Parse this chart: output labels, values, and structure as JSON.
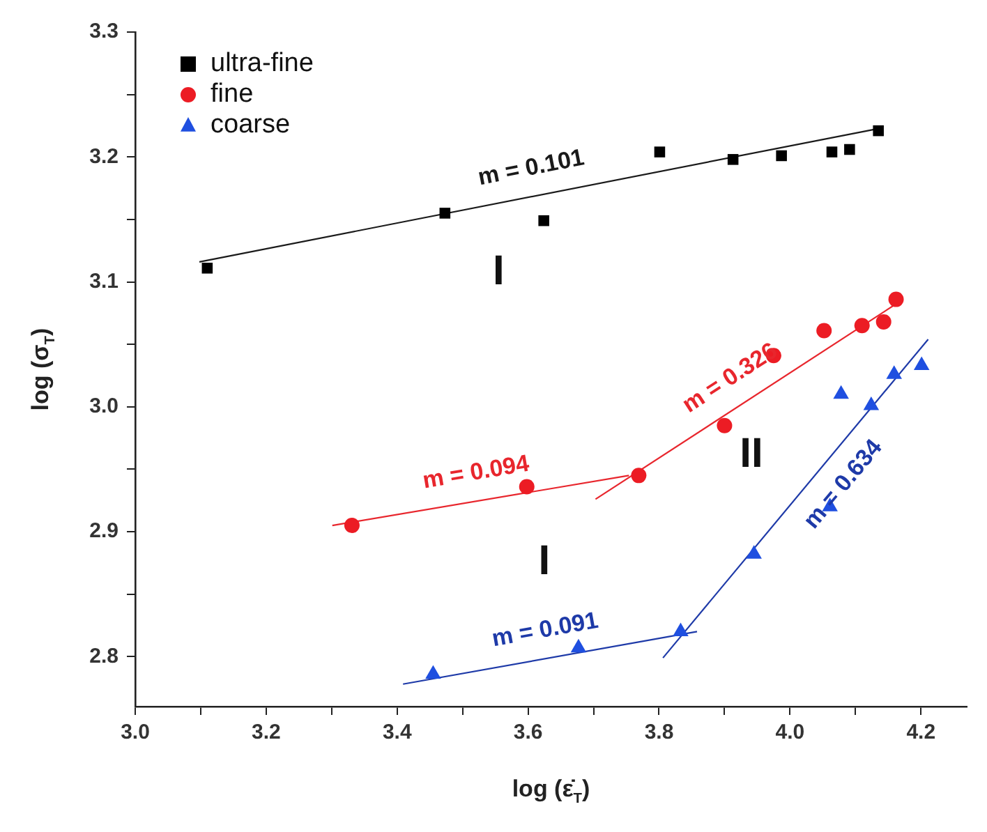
{
  "chart_data": {
    "type": "scatter",
    "xlabel": "log (ε̇$_{T}$)",
    "ylabel": "log (σ$_{T}$)",
    "legend": "top left",
    "xlim": [
      3.0,
      4.27
    ],
    "ylim": [
      2.76,
      3.3
    ],
    "xticks": [
      {
        "value": 3.0,
        "label": "3.0"
      },
      {
        "value": 3.1,
        "label": null
      },
      {
        "value": 3.2,
        "label": "3.2"
      },
      {
        "value": 3.3,
        "label": null
      },
      {
        "value": 3.4,
        "label": "3.4"
      },
      {
        "value": 3.5,
        "label": null
      },
      {
        "value": 3.6,
        "label": "3.6"
      },
      {
        "value": 3.7,
        "label": null
      },
      {
        "value": 3.8,
        "label": "3.8"
      },
      {
        "value": 3.9,
        "label": null
      },
      {
        "value": 4.0,
        "label": "4.0"
      },
      {
        "value": 4.1,
        "label": null
      },
      {
        "value": 4.2,
        "label": "4.2"
      }
    ],
    "yticks": [
      {
        "value": 2.8,
        "label": "2.8"
      },
      {
        "value": 2.85,
        "label": null
      },
      {
        "value": 2.9,
        "label": "2.9"
      },
      {
        "value": 2.95,
        "label": null
      },
      {
        "value": 3.0,
        "label": "3.0"
      },
      {
        "value": 3.05,
        "label": null
      },
      {
        "value": 3.1,
        "label": "3.1"
      },
      {
        "value": 3.15,
        "label": null
      },
      {
        "value": 3.2,
        "label": "3.2"
      },
      {
        "value": 3.25,
        "label": null
      },
      {
        "value": 3.3,
        "label": "3.3"
      }
    ],
    "series": [
      {
        "name": "ultra-fine",
        "type": "scatter",
        "marker": "square",
        "color": "#000000",
        "x": [
          3.11,
          3.473,
          3.624,
          3.801,
          3.913,
          3.987,
          4.064,
          4.091,
          4.135
        ],
        "values": [
          3.111,
          3.155,
          3.149,
          3.204,
          3.198,
          3.201,
          3.204,
          3.206,
          3.221
        ]
      },
      {
        "name": "fine",
        "type": "scatter",
        "marker": "circle",
        "color": "#ec1c24",
        "x": [
          3.331,
          3.598,
          3.769,
          3.9,
          3.975,
          4.052,
          4.11,
          4.143,
          4.162
        ],
        "values": [
          2.905,
          2.936,
          2.945,
          2.985,
          3.041,
          3.061,
          3.065,
          3.068,
          3.086
        ]
      },
      {
        "name": "coarse",
        "type": "scatter",
        "marker": "triangle",
        "color": "#1f4fe0",
        "x": [
          3.455,
          3.677,
          3.833,
          3.945,
          4.061,
          4.078,
          4.124,
          4.159,
          4.201
        ],
        "values": [
          2.786,
          2.807,
          2.82,
          2.882,
          2.92,
          3.01,
          3.001,
          3.026,
          3.033
        ]
      },
      {
        "name": "m = 0.101",
        "type": "line",
        "marker": "none",
        "color": "#1a1a1a",
        "x": [
          3.098,
          4.128
        ],
        "values": [
          3.116,
          3.222
        ]
      },
      {
        "name": "m = 0.094",
        "type": "line",
        "marker": "none",
        "color": "#e8262d",
        "x": [
          3.301,
          3.754
        ],
        "values": [
          2.905,
          2.945
        ]
      },
      {
        "name": "m = 0.326",
        "type": "line",
        "marker": "none",
        "color": "#e8262d",
        "x": [
          3.703,
          4.161
        ],
        "values": [
          2.926,
          3.082
        ]
      },
      {
        "name": "m = 0.091",
        "type": "line",
        "marker": "none",
        "color": "#1e3aa8",
        "x": [
          3.409,
          3.858
        ],
        "values": [
          2.778,
          2.82
        ]
      },
      {
        "name": "m = 0.634",
        "type": "line",
        "marker": "none",
        "color": "#1e3aa8",
        "x": [
          3.806,
          4.211
        ],
        "values": [
          2.799,
          3.054
        ]
      }
    ],
    "annotations": [
      "I",
      "II",
      "I"
    ]
  }
}
